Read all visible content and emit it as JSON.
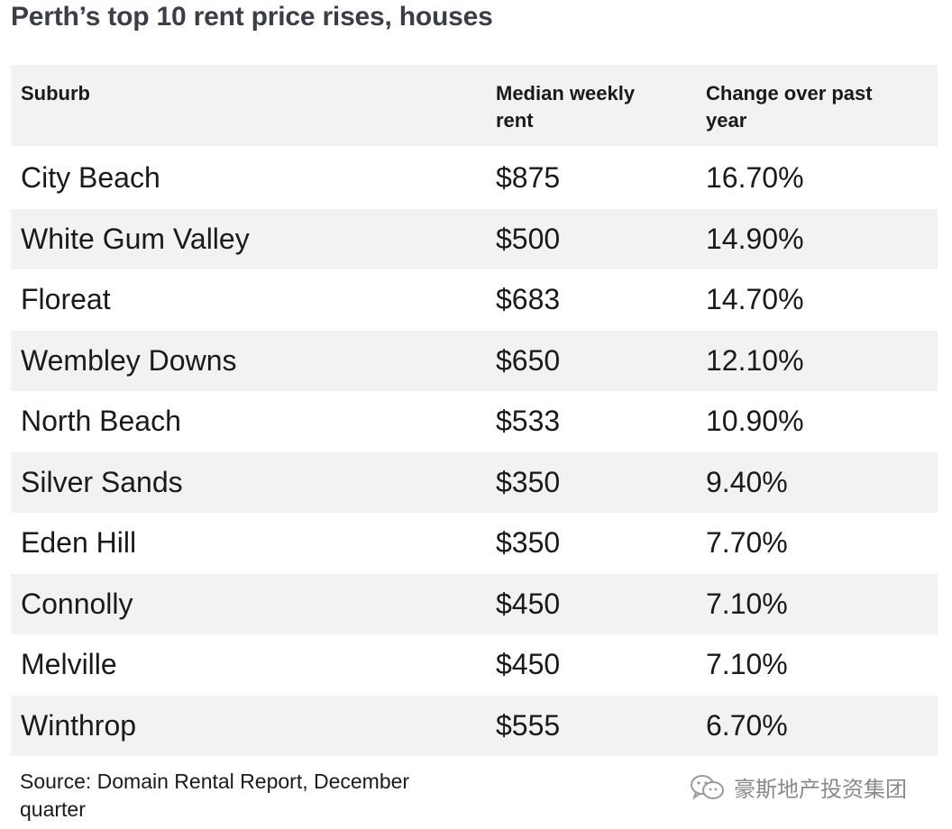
{
  "title": "Perth’s top 10 rent price rises, houses",
  "chart_data": {
    "type": "table",
    "columns": [
      "Suburb",
      "Median weekly rent",
      "Change over past year"
    ],
    "rows": [
      [
        "City Beach",
        "$875",
        "16.70%"
      ],
      [
        "White Gum Valley",
        "$500",
        "14.90%"
      ],
      [
        "Floreat",
        "$683",
        "14.70%"
      ],
      [
        "Wembley Downs",
        "$650",
        "12.10%"
      ],
      [
        "North Beach",
        "$533",
        "10.90%"
      ],
      [
        "Silver Sands",
        "$350",
        "9.40%"
      ],
      [
        "Eden Hill",
        "$350",
        "7.70%"
      ],
      [
        "Connolly",
        "$450",
        "7.10%"
      ],
      [
        "Melville",
        "$450",
        "7.10%"
      ],
      [
        "Winthrop",
        "$555",
        "6.70%"
      ]
    ],
    "values": [
      {
        "suburb": "City Beach",
        "rent": 875,
        "change_pct": 16.7
      },
      {
        "suburb": "White Gum Valley",
        "rent": 500,
        "change_pct": 14.9
      },
      {
        "suburb": "Floreat",
        "rent": 683,
        "change_pct": 14.7
      },
      {
        "suburb": "Wembley Downs",
        "rent": 650,
        "change_pct": 12.1
      },
      {
        "suburb": "North Beach",
        "rent": 533,
        "change_pct": 10.9
      },
      {
        "suburb": "Silver Sands",
        "rent": 350,
        "change_pct": 9.4
      },
      {
        "suburb": "Eden Hill",
        "rent": 350,
        "change_pct": 7.7
      },
      {
        "suburb": "Connolly",
        "rent": 450,
        "change_pct": 7.1
      },
      {
        "suburb": "Melville",
        "rent": 450,
        "change_pct": 7.1
      },
      {
        "suburb": "Winthrop",
        "rent": 555,
        "change_pct": 6.7
      }
    ]
  },
  "source": "Source: Domain Rental Report, December quarter",
  "watermark": {
    "text": "豪斯地产投资集团",
    "icon": "wechat-icon"
  },
  "colors": {
    "title": "#3a3f47",
    "stripe": "#f2f2f2",
    "text": "#1a1a1a",
    "watermark": "#8a8a8a"
  }
}
